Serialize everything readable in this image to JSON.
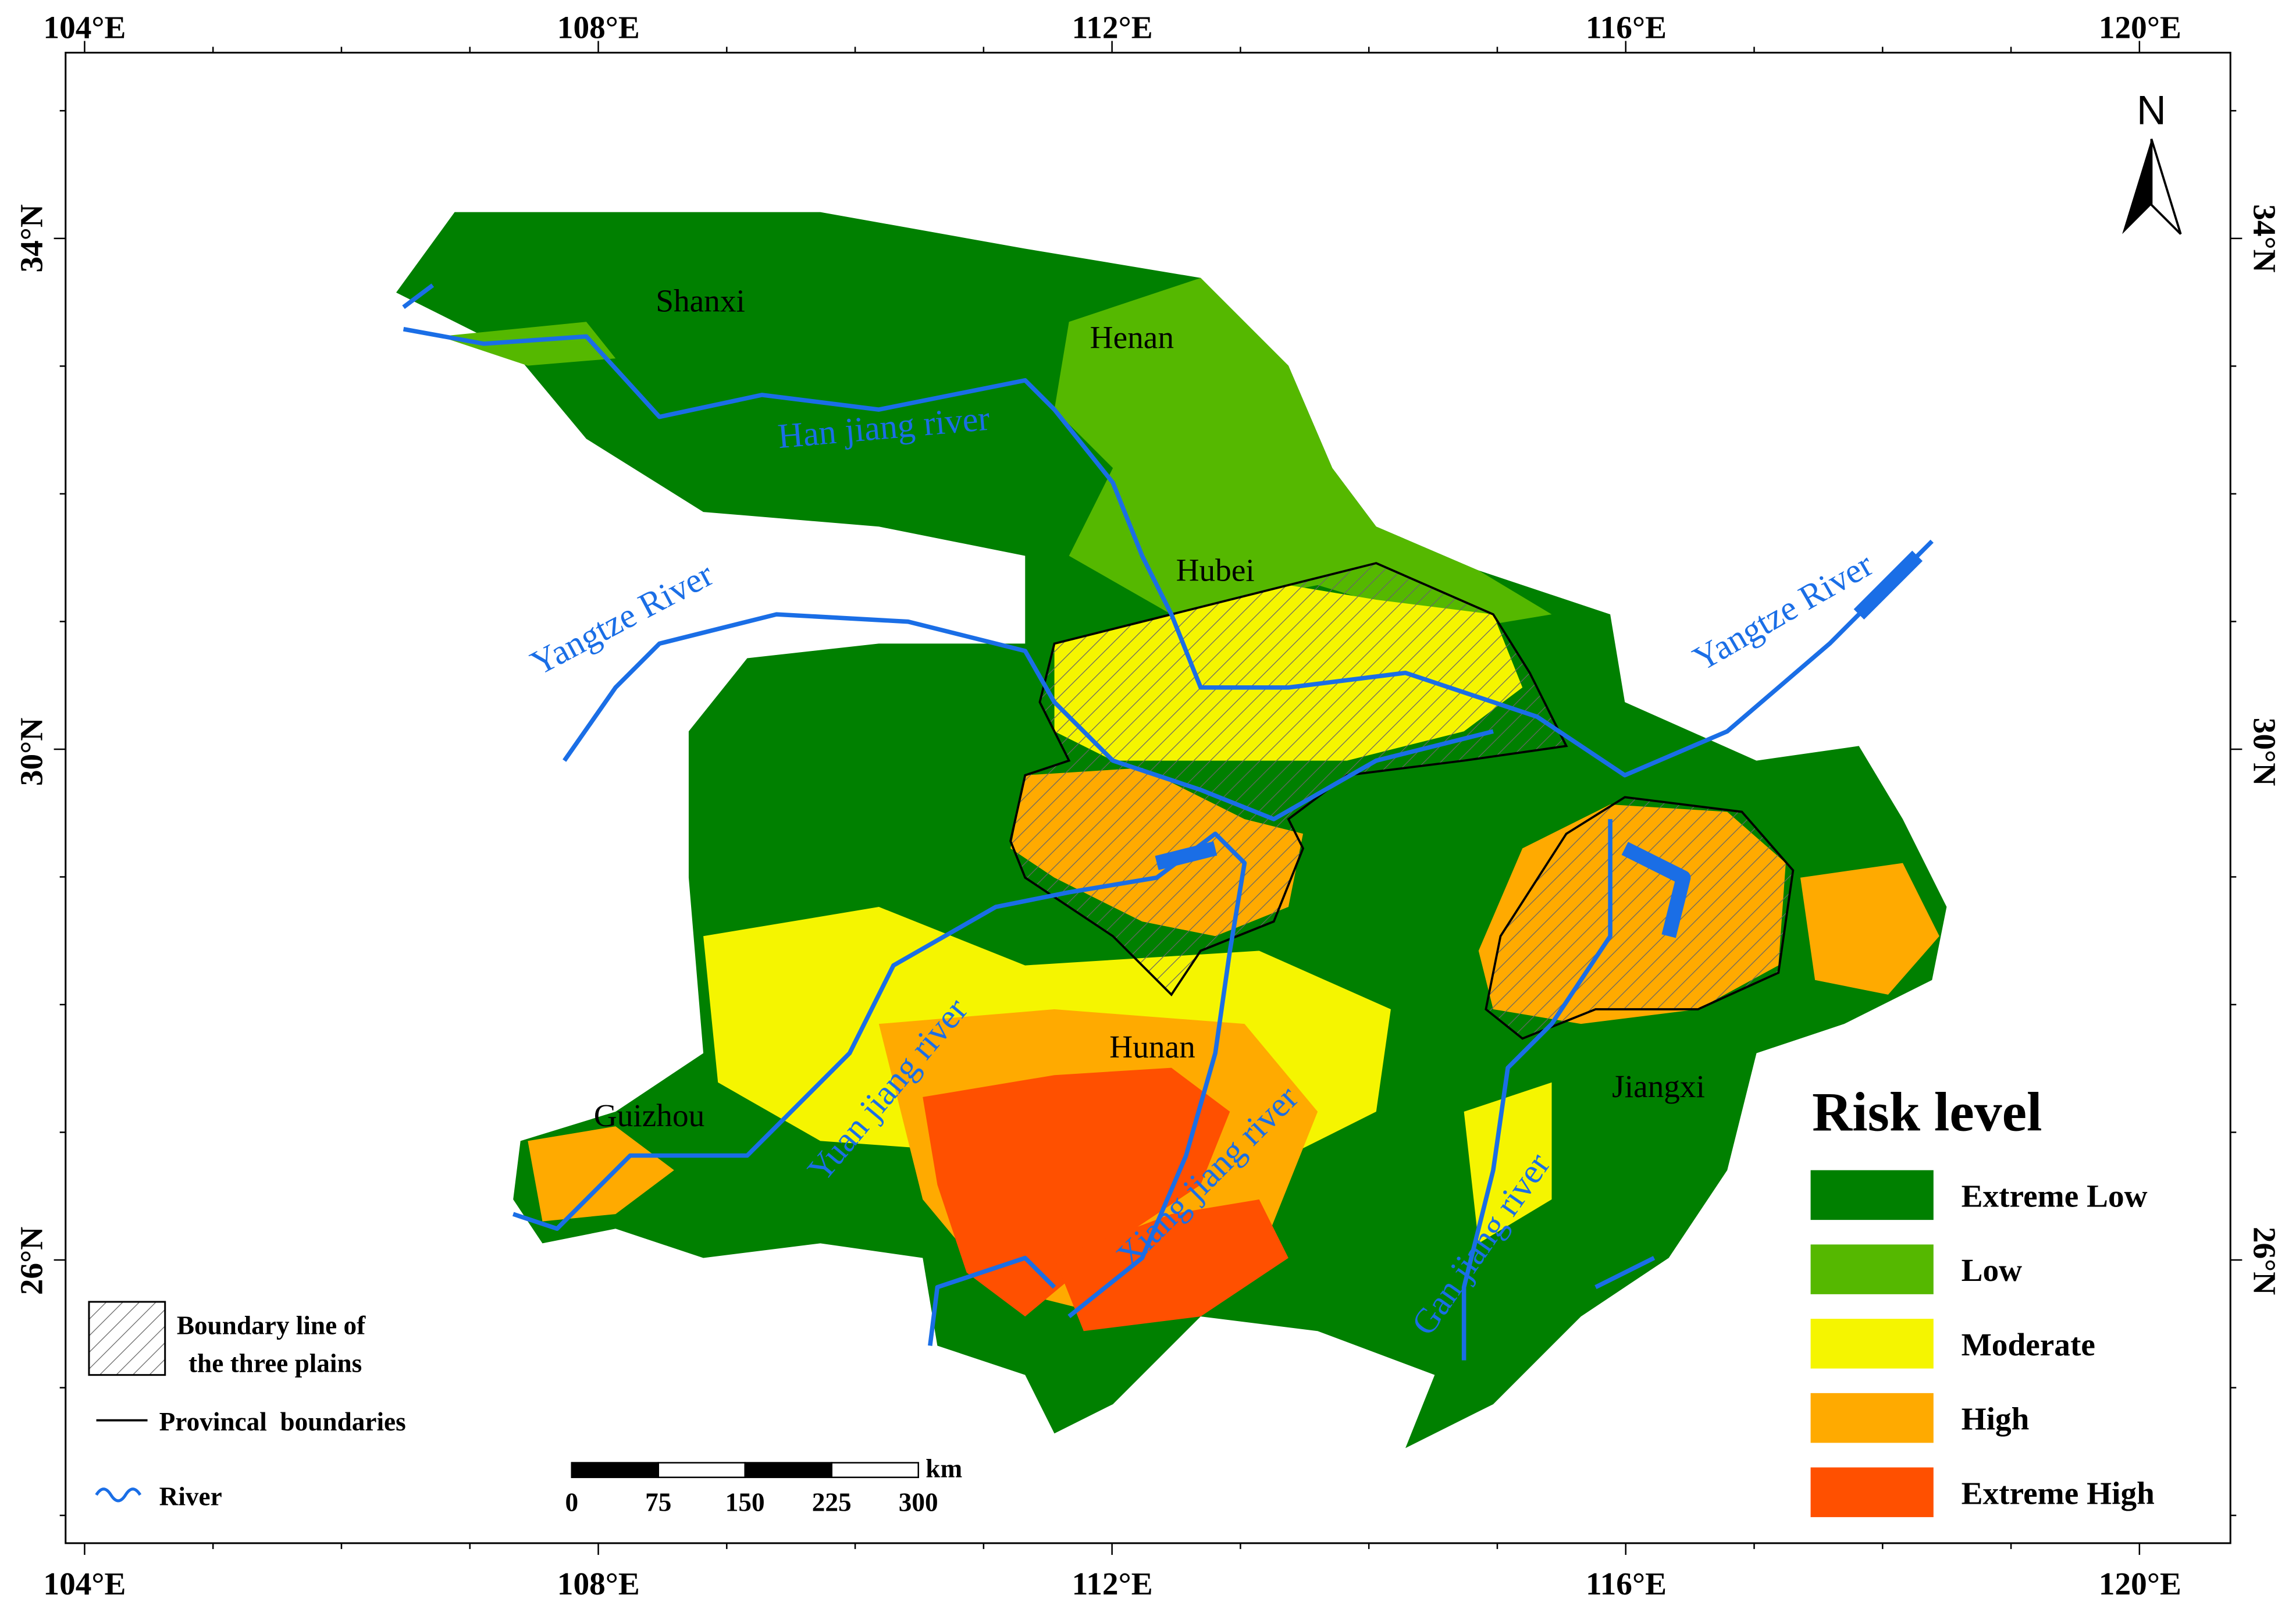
{
  "map": {
    "x_labels": [
      "104°E",
      "108°E",
      "112°E",
      "116°E",
      "120°E"
    ],
    "y_labels": [
      "34°N",
      "30°N",
      "26°N"
    ],
    "north": "N",
    "places": [
      "Shanxi",
      "Henan",
      "Hubei",
      "Hunan",
      "Guizhou",
      "Jiangxi"
    ],
    "rivers": [
      "Han jiang river",
      "Yangtze River",
      "Yangtze River",
      "Yuan jiang river",
      "Xiang jiang river",
      "Gan jiang river"
    ],
    "legend": {
      "title": "Risk level",
      "items": [
        {
          "label": "Extreme Low",
          "color": "#008000"
        },
        {
          "label": "Low",
          "color": "#55b800"
        },
        {
          "label": "Moderate",
          "color": "#f5f500"
        },
        {
          "label": "High",
          "color": "#ffaa00"
        },
        {
          "label": "Extreme High",
          "color": "#ff5000"
        }
      ]
    },
    "boundary_legend": {
      "plains": [
        "Boundary line of",
        "the three plains"
      ],
      "provinces": "Provincal  boundaries",
      "river": "River"
    },
    "scale": {
      "ticks": [
        0,
        75,
        150,
        225,
        300
      ],
      "unit": "km"
    }
  }
}
